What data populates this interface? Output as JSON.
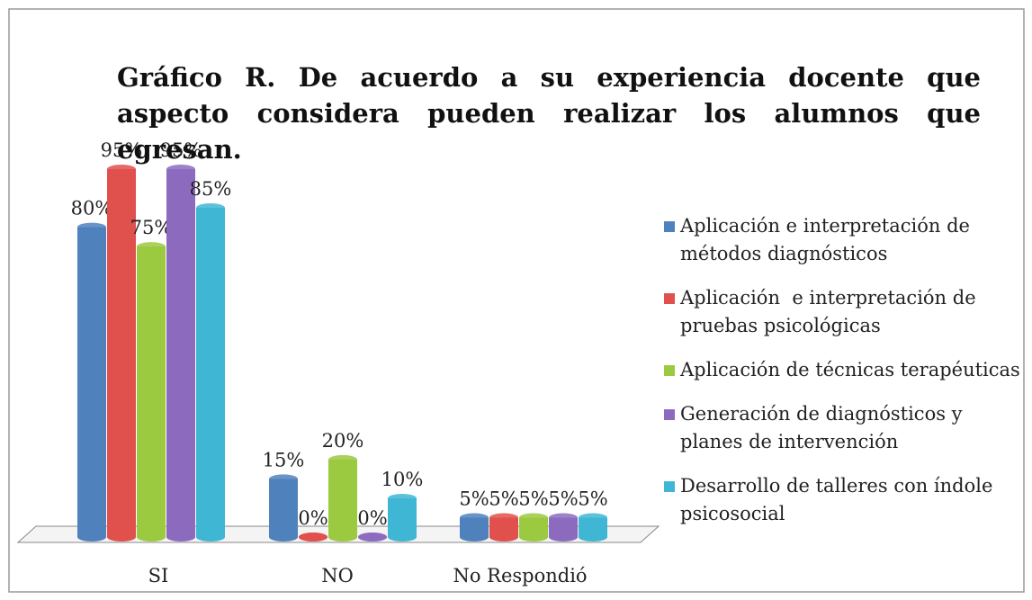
{
  "chart_data": {
    "type": "bar",
    "title": "Gráfico R. De acuerdo a su experiencia docente que aspecto considera pueden realizar los alumnos que egresan.",
    "categories": [
      "SI",
      "NO",
      "No Respondió"
    ],
    "series": [
      {
        "name": "Aplicación e interpretación de métodos diagnósticos",
        "color": "#4f81bd",
        "values": [
          80,
          15,
          5
        ],
        "value_labels": [
          "80%",
          "15%",
          "5%"
        ]
      },
      {
        "name": "Aplicación  e interpretación de pruebas psicológicas",
        "color": "#e0504d",
        "values": [
          95,
          0,
          5
        ],
        "value_labels": [
          "95%",
          "0%",
          "5%"
        ]
      },
      {
        "name": "Aplicación de técnicas terapéuticas",
        "color": "#9bc93f",
        "values": [
          75,
          20,
          5
        ],
        "value_labels": [
          "75%",
          "20%",
          "5%"
        ]
      },
      {
        "name": "Generación de diagnósticos y planes de intervención",
        "color": "#8c6bbf",
        "values": [
          95,
          0,
          5
        ],
        "value_labels": [
          "95%",
          "0%",
          "5%"
        ]
      },
      {
        "name": "Desarrollo de talleres con índole psicosocial",
        "color": "#3fb6d3",
        "values": [
          85,
          10,
          5
        ],
        "value_labels": [
          "85%",
          "10%",
          "5%"
        ]
      }
    ],
    "legend": "right"
  }
}
